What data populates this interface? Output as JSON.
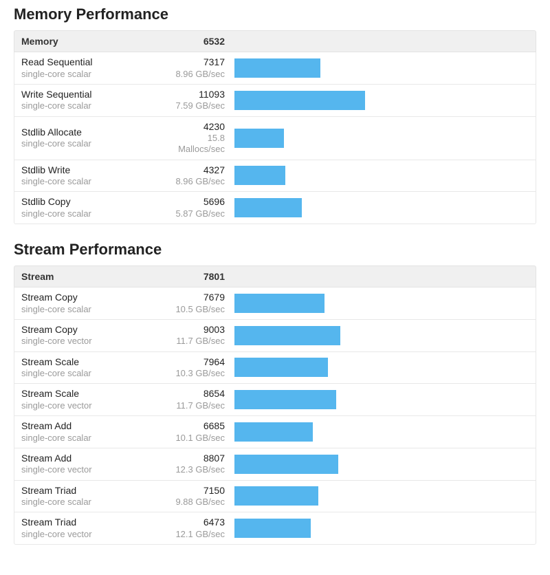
{
  "bar_color": "#55b6ee",
  "bar_max_value": 25000,
  "sections": [
    {
      "title": "Memory Performance",
      "header_label": "Memory",
      "header_score": "6532",
      "rows": [
        {
          "name": "Read Sequential",
          "sub": "single-core scalar",
          "score": "7317",
          "rate": "8.96 GB/sec",
          "value": 7317
        },
        {
          "name": "Write Sequential",
          "sub": "single-core scalar",
          "score": "11093",
          "rate": "7.59 GB/sec",
          "value": 11093
        },
        {
          "name": "Stdlib Allocate",
          "sub": "single-core scalar",
          "score": "4230",
          "rate": "15.8 Mallocs/sec",
          "value": 4230
        },
        {
          "name": "Stdlib Write",
          "sub": "single-core scalar",
          "score": "4327",
          "rate": "8.96 GB/sec",
          "value": 4327
        },
        {
          "name": "Stdlib Copy",
          "sub": "single-core scalar",
          "score": "5696",
          "rate": "5.87 GB/sec",
          "value": 5696
        }
      ]
    },
    {
      "title": "Stream Performance",
      "header_label": "Stream",
      "header_score": "7801",
      "rows": [
        {
          "name": "Stream Copy",
          "sub": "single-core scalar",
          "score": "7679",
          "rate": "10.5 GB/sec",
          "value": 7679
        },
        {
          "name": "Stream Copy",
          "sub": "single-core vector",
          "score": "9003",
          "rate": "11.7 GB/sec",
          "value": 9003
        },
        {
          "name": "Stream Scale",
          "sub": "single-core scalar",
          "score": "7964",
          "rate": "10.3 GB/sec",
          "value": 7964
        },
        {
          "name": "Stream Scale",
          "sub": "single-core vector",
          "score": "8654",
          "rate": "11.7 GB/sec",
          "value": 8654
        },
        {
          "name": "Stream Add",
          "sub": "single-core scalar",
          "score": "6685",
          "rate": "10.1 GB/sec",
          "value": 6685
        },
        {
          "name": "Stream Add",
          "sub": "single-core vector",
          "score": "8807",
          "rate": "12.3 GB/sec",
          "value": 8807
        },
        {
          "name": "Stream Triad",
          "sub": "single-core scalar",
          "score": "7150",
          "rate": "9.88 GB/sec",
          "value": 7150
        },
        {
          "name": "Stream Triad",
          "sub": "single-core vector",
          "score": "6473",
          "rate": "12.1 GB/sec",
          "value": 6473
        }
      ]
    }
  ]
}
